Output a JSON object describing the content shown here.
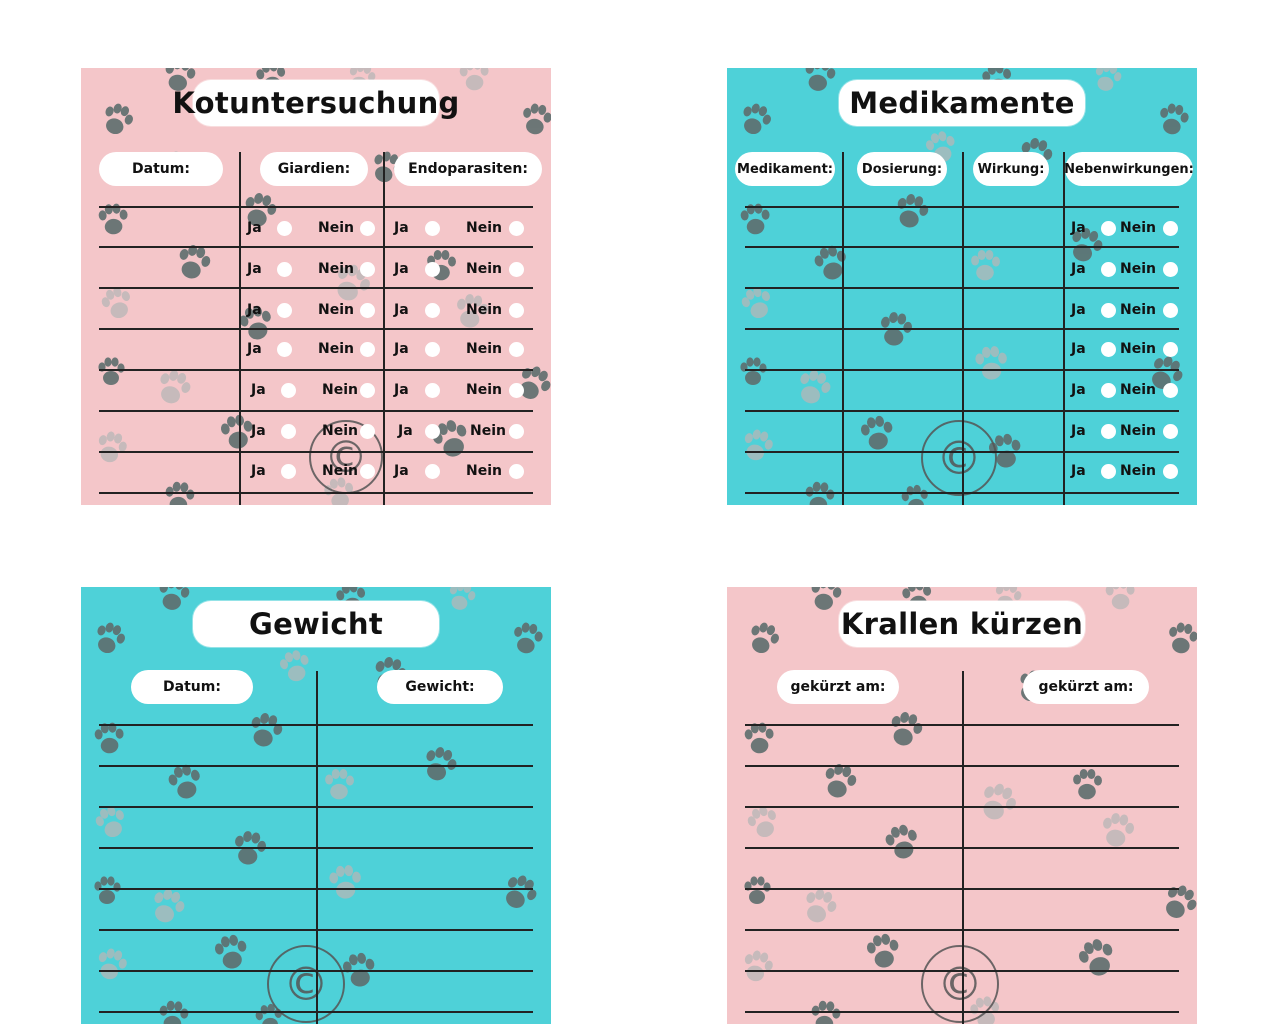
{
  "colors": {
    "pink": "#f4c6c9",
    "teal": "#4ed1d8",
    "paw_dark": "#5e6e6e",
    "paw_light": "#b7b7b7"
  },
  "kotuntersuchung": {
    "title": "Kotuntersuchung",
    "headers": [
      "Datum:",
      "Giardien:",
      "Endoparasiten:"
    ],
    "yes_label": "Ja",
    "no_label": "Nein"
  },
  "medikamente": {
    "title": "Medikamente",
    "headers": [
      "Medikament:",
      "Dosierung:",
      "Wirkung:",
      "Nebenwirkungen:"
    ],
    "yes_label": "Ja",
    "no_label": "Nein"
  },
  "gewicht": {
    "title": "Gewicht",
    "headers": [
      "Datum:",
      "Gewicht:"
    ]
  },
  "krallen": {
    "title": "Krallen kürzen",
    "headers": [
      "gekürzt am:",
      "gekürzt am:"
    ]
  },
  "watermark_icon": "copyright-icon",
  "paw_icon": "paw-print-icon"
}
